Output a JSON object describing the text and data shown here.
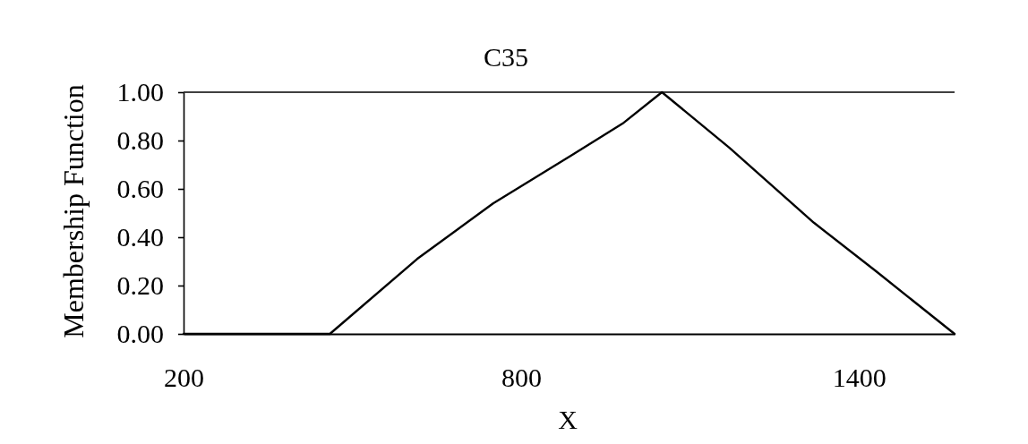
{
  "chart_data": {
    "type": "line",
    "title": "C35",
    "xlabel": "X",
    "ylabel": "Membership Function",
    "x": [
      200,
      460,
      615,
      750,
      890,
      980,
      1050,
      1170,
      1320,
      1430,
      1570
    ],
    "series": [
      {
        "color": "#000000",
        "values": [
          0,
          0,
          0.31,
          0.54,
          0.74,
          0.87,
          1.0,
          0.77,
          0.46,
          0.26,
          0
        ]
      }
    ],
    "xlim": [
      200,
      1570
    ],
    "xticks": [
      200,
      800,
      1400
    ],
    "ylim": [
      0,
      1
    ],
    "yticks": [
      {
        "value": 0,
        "label": "0.00"
      },
      {
        "value": 0.2,
        "label": "0.20"
      },
      {
        "value": 0.4,
        "label": "0.40"
      },
      {
        "value": 0.6,
        "label": "0.60"
      },
      {
        "value": 0.8,
        "label": "0.80"
      },
      {
        "value": 1,
        "label": "1.00"
      }
    ],
    "line_style": "solid"
  }
}
